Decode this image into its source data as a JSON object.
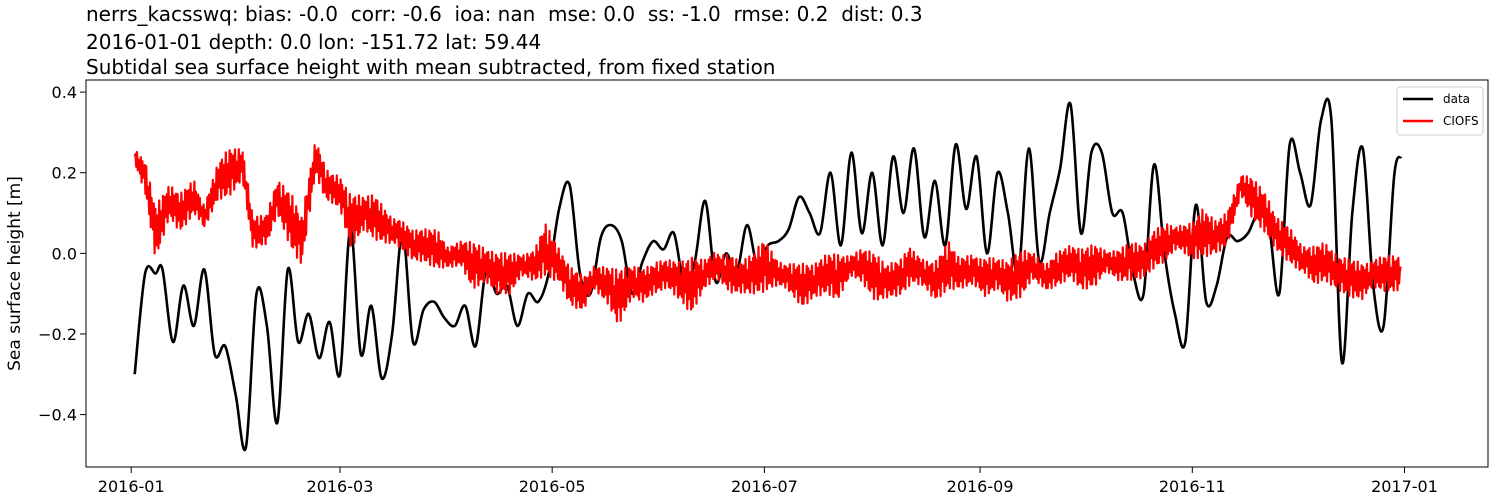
{
  "title_lines": [
    "nerrs_kacsswq: bias: -0.0  corr: -0.6  ioa: nan  mse: 0.0  ss: -1.0  rmse: 0.2  dist: 0.3",
    "2016-01-01 depth: 0.0 lon: -151.72 lat: 59.44",
    "Subtidal sea surface height with mean subtracted, from fixed station"
  ],
  "chart_data": {
    "type": "line",
    "ylabel": "Sea surface height [m]",
    "xlabel": "",
    "xlim": [
      "2015-12-19",
      "2017-01-25"
    ],
    "ylim": [
      -0.53,
      0.43
    ],
    "xticks": [
      "2016-01",
      "2016-03",
      "2016-05",
      "2016-07",
      "2016-09",
      "2016-11",
      "2017-01"
    ],
    "yticks": [
      -0.4,
      -0.2,
      0.0,
      0.2,
      0.4
    ],
    "ytick_labels": [
      "−0.4",
      "−0.2",
      "0.0",
      "0.2",
      "0.4"
    ],
    "legend_position": "top-right",
    "grid": false,
    "series": [
      {
        "name": "data",
        "color": "#000000",
        "x": [
          "2016-01-02",
          "2016-01-05",
          "2016-01-08",
          "2016-01-10",
          "2016-01-13",
          "2016-01-16",
          "2016-01-19",
          "2016-01-22",
          "2016-01-25",
          "2016-01-28",
          "2016-01-31",
          "2016-02-03",
          "2016-02-06",
          "2016-02-09",
          "2016-02-12",
          "2016-02-15",
          "2016-02-18",
          "2016-02-21",
          "2016-02-24",
          "2016-02-27",
          "2016-03-01",
          "2016-03-04",
          "2016-03-07",
          "2016-03-10",
          "2016-03-13",
          "2016-03-16",
          "2016-03-19",
          "2016-03-22",
          "2016-03-25",
          "2016-03-28",
          "2016-03-31",
          "2016-04-03",
          "2016-04-06",
          "2016-04-09",
          "2016-04-12",
          "2016-04-15",
          "2016-04-18",
          "2016-04-21",
          "2016-04-24",
          "2016-04-27",
          "2016-04-30",
          "2016-05-03",
          "2016-05-06",
          "2016-05-09",
          "2016-05-12",
          "2016-05-15",
          "2016-05-18",
          "2016-05-21",
          "2016-05-24",
          "2016-05-27",
          "2016-05-30",
          "2016-06-02",
          "2016-06-05",
          "2016-06-08",
          "2016-06-11",
          "2016-06-14",
          "2016-06-17",
          "2016-06-20",
          "2016-06-23",
          "2016-06-26",
          "2016-06-29",
          "2016-07-02",
          "2016-07-05",
          "2016-07-08",
          "2016-07-11",
          "2016-07-14",
          "2016-07-17",
          "2016-07-20",
          "2016-07-23",
          "2016-07-26",
          "2016-07-29",
          "2016-08-01",
          "2016-08-04",
          "2016-08-07",
          "2016-08-10",
          "2016-08-13",
          "2016-08-16",
          "2016-08-19",
          "2016-08-22",
          "2016-08-25",
          "2016-08-28",
          "2016-08-31",
          "2016-09-03",
          "2016-09-06",
          "2016-09-09",
          "2016-09-12",
          "2016-09-15",
          "2016-09-18",
          "2016-09-21",
          "2016-09-24",
          "2016-09-27",
          "2016-09-30",
          "2016-10-03",
          "2016-10-06",
          "2016-10-09",
          "2016-10-12",
          "2016-10-15",
          "2016-10-18",
          "2016-10-21",
          "2016-10-24",
          "2016-10-27",
          "2016-10-30",
          "2016-11-02",
          "2016-11-05",
          "2016-11-08",
          "2016-11-11",
          "2016-11-14",
          "2016-11-17",
          "2016-11-20",
          "2016-11-23",
          "2016-11-26",
          "2016-11-29",
          "2016-12-02",
          "2016-12-05",
          "2016-12-08",
          "2016-12-11",
          "2016-12-14",
          "2016-12-17",
          "2016-12-20",
          "2016-12-23",
          "2016-12-26",
          "2016-12-29",
          "2016-12-31"
        ],
        "y": [
          -0.3,
          -0.05,
          -0.05,
          -0.04,
          -0.22,
          -0.08,
          -0.18,
          -0.04,
          -0.25,
          -0.23,
          -0.35,
          -0.48,
          -0.1,
          -0.18,
          -0.42,
          -0.04,
          -0.22,
          -0.15,
          -0.26,
          -0.17,
          -0.3,
          0.06,
          -0.25,
          -0.13,
          -0.31,
          -0.2,
          0.05,
          -0.22,
          -0.14,
          -0.12,
          -0.16,
          -0.18,
          -0.13,
          -0.23,
          -0.04,
          -0.1,
          -0.08,
          -0.18,
          -0.1,
          -0.12,
          -0.05,
          0.11,
          0.17,
          -0.05,
          -0.1,
          0.04,
          0.07,
          0.03,
          -0.1,
          -0.02,
          0.03,
          0.01,
          0.05,
          -0.08,
          -0.02,
          0.13,
          -0.07,
          0.0,
          -0.05,
          0.07,
          -0.03,
          0.02,
          0.03,
          0.06,
          0.14,
          0.1,
          0.05,
          0.2,
          0.02,
          0.25,
          0.05,
          0.2,
          0.02,
          0.24,
          0.1,
          0.26,
          0.04,
          0.18,
          0.02,
          0.27,
          0.11,
          0.24,
          0.0,
          0.2,
          0.1,
          -0.05,
          0.26,
          -0.02,
          0.1,
          0.21,
          0.37,
          0.05,
          0.25,
          0.25,
          0.1,
          0.1,
          -0.05,
          -0.1,
          0.22,
          0.0,
          -0.15,
          -0.22,
          0.12,
          -0.12,
          -0.08,
          0.04,
          0.03,
          0.05,
          0.1,
          0.07,
          -0.1,
          0.27,
          0.2,
          0.12,
          0.33,
          0.33,
          -0.27,
          0.1,
          0.26,
          -0.08,
          -0.18,
          0.19,
          0.24
        ]
      },
      {
        "name": "CIOFS",
        "color": "#ff0000",
        "x": [
          "2016-01-02",
          "2016-01-05",
          "2016-01-08",
          "2016-01-12",
          "2016-01-15",
          "2016-01-19",
          "2016-01-22",
          "2016-01-26",
          "2016-01-29",
          "2016-02-02",
          "2016-02-05",
          "2016-02-09",
          "2016-02-12",
          "2016-02-16",
          "2016-02-19",
          "2016-02-23",
          "2016-02-26",
          "2016-03-01",
          "2016-03-04",
          "2016-03-08",
          "2016-03-11",
          "2016-03-15",
          "2016-03-18",
          "2016-03-22",
          "2016-03-25",
          "2016-03-29",
          "2016-04-01",
          "2016-04-05",
          "2016-04-08",
          "2016-04-12",
          "2016-04-15",
          "2016-04-19",
          "2016-04-22",
          "2016-04-26",
          "2016-04-29",
          "2016-05-03",
          "2016-05-06",
          "2016-05-10",
          "2016-05-13",
          "2016-05-17",
          "2016-05-20",
          "2016-05-24",
          "2016-05-27",
          "2016-05-31",
          "2016-06-03",
          "2016-06-07",
          "2016-06-10",
          "2016-06-14",
          "2016-06-17",
          "2016-06-21",
          "2016-06-24",
          "2016-06-28",
          "2016-07-01",
          "2016-07-05",
          "2016-07-08",
          "2016-07-12",
          "2016-07-15",
          "2016-07-19",
          "2016-07-22",
          "2016-07-26",
          "2016-07-29",
          "2016-08-02",
          "2016-08-05",
          "2016-08-09",
          "2016-08-12",
          "2016-08-16",
          "2016-08-19",
          "2016-08-23",
          "2016-08-26",
          "2016-08-30",
          "2016-09-02",
          "2016-09-06",
          "2016-09-09",
          "2016-09-13",
          "2016-09-16",
          "2016-09-20",
          "2016-09-23",
          "2016-09-27",
          "2016-09-30",
          "2016-10-04",
          "2016-10-07",
          "2016-10-11",
          "2016-10-14",
          "2016-10-18",
          "2016-10-21",
          "2016-10-25",
          "2016-10-28",
          "2016-11-01",
          "2016-11-04",
          "2016-11-08",
          "2016-11-11",
          "2016-11-15",
          "2016-11-18",
          "2016-11-22",
          "2016-11-25",
          "2016-11-29",
          "2016-12-02",
          "2016-12-06",
          "2016-12-09",
          "2016-12-13",
          "2016-12-16",
          "2016-12-20",
          "2016-12-23",
          "2016-12-27",
          "2016-12-31"
        ],
        "y": [
          0.24,
          0.19,
          0.05,
          0.13,
          0.1,
          0.14,
          0.09,
          0.18,
          0.2,
          0.22,
          0.05,
          0.06,
          0.14,
          0.08,
          0.03,
          0.24,
          0.17,
          0.15,
          0.08,
          0.1,
          0.09,
          0.06,
          0.05,
          0.02,
          0.02,
          0.01,
          -0.01,
          0.0,
          -0.03,
          -0.03,
          -0.05,
          -0.05,
          -0.03,
          -0.03,
          0.01,
          -0.03,
          -0.08,
          -0.1,
          -0.06,
          -0.08,
          -0.11,
          -0.07,
          -0.08,
          -0.06,
          -0.05,
          -0.07,
          -0.08,
          -0.05,
          -0.03,
          -0.05,
          -0.06,
          -0.05,
          -0.03,
          -0.05,
          -0.06,
          -0.08,
          -0.07,
          -0.05,
          -0.06,
          -0.03,
          -0.03,
          -0.06,
          -0.07,
          -0.06,
          -0.03,
          -0.05,
          -0.07,
          -0.03,
          -0.05,
          -0.04,
          -0.06,
          -0.05,
          -0.07,
          -0.05,
          -0.03,
          -0.06,
          -0.04,
          -0.02,
          -0.04,
          -0.03,
          -0.02,
          -0.03,
          -0.02,
          -0.02,
          0.01,
          0.03,
          0.04,
          0.03,
          0.05,
          0.04,
          0.06,
          0.17,
          0.14,
          0.1,
          0.05,
          0.02,
          -0.01,
          -0.03,
          -0.02,
          -0.05,
          -0.06,
          -0.07,
          -0.05,
          -0.05,
          -0.05
        ],
        "amplitude": [
          0.03,
          0.05,
          0.07,
          0.04,
          0.05,
          0.06,
          0.04,
          0.05,
          0.06,
          0.04,
          0.05,
          0.06,
          0.05,
          0.07,
          0.06,
          0.05,
          0.06,
          0.05,
          0.07,
          0.04,
          0.06,
          0.05,
          0.05,
          0.04,
          0.04,
          0.05,
          0.03,
          0.05,
          0.07,
          0.04,
          0.05,
          0.06,
          0.04,
          0.05,
          0.07,
          0.04,
          0.05,
          0.06,
          0.04,
          0.05,
          0.07,
          0.04,
          0.05,
          0.06,
          0.04,
          0.05,
          0.07,
          0.04,
          0.05,
          0.06,
          0.04,
          0.05,
          0.07,
          0.04,
          0.05,
          0.06,
          0.04,
          0.05,
          0.07,
          0.04,
          0.05,
          0.06,
          0.04,
          0.05,
          0.07,
          0.04,
          0.05,
          0.06,
          0.04,
          0.05,
          0.07,
          0.04,
          0.05,
          0.06,
          0.04,
          0.05,
          0.05,
          0.04,
          0.05,
          0.06,
          0.04,
          0.05,
          0.05,
          0.04,
          0.05,
          0.06,
          0.04,
          0.05,
          0.06,
          0.04,
          0.05,
          0.04,
          0.06,
          0.05,
          0.04,
          0.05,
          0.05,
          0.06,
          0.05,
          0.04,
          0.05,
          0.06,
          0.05,
          0.05,
          0.04
        ]
      }
    ]
  }
}
